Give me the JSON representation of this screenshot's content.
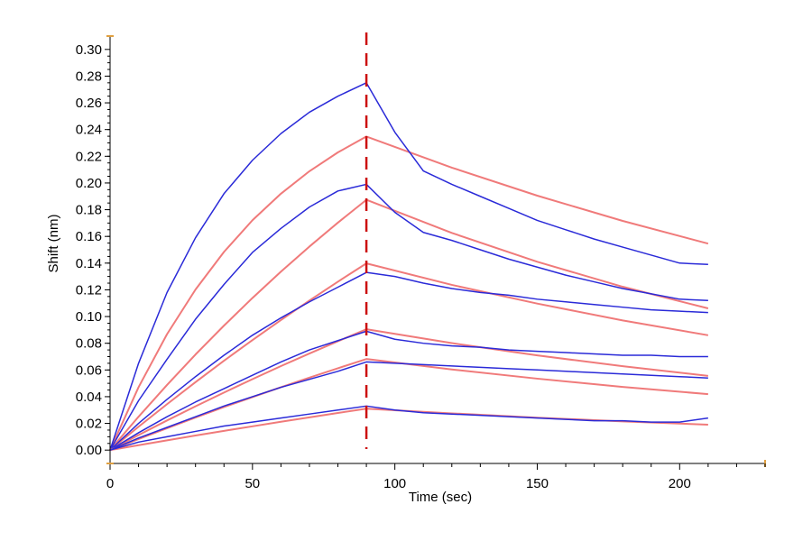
{
  "chart_data": {
    "type": "line",
    "title": "",
    "xlabel": "Time (sec)",
    "ylabel": "Shift (nm)",
    "xlim": [
      0,
      230
    ],
    "ylim": [
      -0.01,
      0.31
    ],
    "x_ticks": [
      0,
      50,
      100,
      150,
      200
    ],
    "x_tick_labels": [
      "0",
      "50",
      "100",
      "150",
      "200"
    ],
    "y_ticks": [
      0.0,
      0.02,
      0.04,
      0.06,
      0.08,
      0.1,
      0.12,
      0.14,
      0.16,
      0.18,
      0.2,
      0.22,
      0.24,
      0.26,
      0.28,
      0.3
    ],
    "y_tick_labels": [
      "0.00",
      "0.02",
      "0.04",
      "0.06",
      "0.08",
      "0.10",
      "0.12",
      "0.14",
      "0.16",
      "0.18",
      "0.20",
      "0.22",
      "0.24",
      "0.26",
      "0.28",
      "0.30"
    ],
    "grid": false,
    "marker_line": {
      "x": 90,
      "color": "#cc1111",
      "style": "dashed"
    },
    "colors": {
      "measured": "#2a2ad8",
      "fit": "#f07a7a",
      "axis_accent": "#e0a040"
    },
    "series": [
      {
        "kind": "fit",
        "x": [
          0,
          10,
          20,
          30,
          40,
          50,
          60,
          70,
          80,
          90,
          120,
          150,
          180,
          210
        ],
        "values": [
          0,
          0.0471,
          0.0868,
          0.1202,
          0.1484,
          0.1721,
          0.192,
          0.2088,
          0.2229,
          0.2348,
          0.2115,
          0.1905,
          0.1716,
          0.1546
        ]
      },
      {
        "kind": "measured",
        "x": [
          0,
          10,
          20,
          30,
          40,
          50,
          60,
          70,
          80,
          90,
          100,
          110,
          120,
          130,
          140,
          150,
          160,
          170,
          180,
          190,
          200,
          210
        ],
        "values": [
          0,
          0.065,
          0.118,
          0.159,
          0.192,
          0.217,
          0.237,
          0.253,
          0.265,
          0.275,
          0.238,
          0.209,
          0.199,
          0.19,
          0.181,
          0.172,
          0.165,
          0.158,
          0.152,
          0.146,
          0.14,
          0.139
        ]
      },
      {
        "kind": "fit",
        "x": [
          0,
          10,
          20,
          30,
          40,
          50,
          60,
          70,
          80,
          90,
          120,
          150,
          180,
          210
        ],
        "values": [
          0,
          0.025,
          0.0488,
          0.0716,
          0.0932,
          0.1139,
          0.1336,
          0.1524,
          0.1703,
          0.1874,
          0.1626,
          0.141,
          0.1223,
          0.1061
        ]
      },
      {
        "kind": "measured",
        "x": [
          0,
          10,
          20,
          30,
          40,
          50,
          60,
          70,
          80,
          90,
          100,
          110,
          120,
          130,
          140,
          150,
          160,
          170,
          180,
          190,
          200,
          210
        ],
        "values": [
          0,
          0.037,
          0.068,
          0.098,
          0.124,
          0.148,
          0.166,
          0.182,
          0.194,
          0.199,
          0.178,
          0.163,
          0.157,
          0.15,
          0.143,
          0.137,
          0.131,
          0.126,
          0.121,
          0.117,
          0.113,
          0.112
        ]
      },
      {
        "kind": "fit",
        "x": [
          0,
          10,
          20,
          30,
          40,
          50,
          60,
          70,
          80,
          90,
          120,
          150,
          180,
          210
        ],
        "values": [
          0,
          0.0175,
          0.0344,
          0.0509,
          0.0669,
          0.0824,
          0.0974,
          0.112,
          0.1261,
          0.1398,
          0.1237,
          0.1097,
          0.0971,
          0.086
        ]
      },
      {
        "kind": "measured",
        "x": [
          0,
          10,
          20,
          30,
          40,
          50,
          60,
          70,
          80,
          90,
          100,
          110,
          120,
          130,
          140,
          150,
          160,
          170,
          180,
          190,
          200,
          210
        ],
        "values": [
          0,
          0.02,
          0.038,
          0.055,
          0.071,
          0.086,
          0.099,
          0.111,
          0.122,
          0.133,
          0.13,
          0.125,
          0.121,
          0.118,
          0.116,
          0.113,
          0.111,
          0.109,
          0.107,
          0.105,
          0.104,
          0.103
        ]
      },
      {
        "kind": "fit",
        "x": [
          0,
          10,
          20,
          30,
          40,
          50,
          60,
          70,
          80,
          90,
          120,
          150,
          180,
          210
        ],
        "values": [
          0,
          0.0113,
          0.0222,
          0.0328,
          0.0431,
          0.0531,
          0.0629,
          0.0723,
          0.0815,
          0.0905,
          0.0801,
          0.0709,
          0.0628,
          0.0556
        ]
      },
      {
        "kind": "measured",
        "x": [
          0,
          10,
          20,
          30,
          40,
          50,
          60,
          70,
          80,
          90,
          100,
          110,
          120,
          130,
          140,
          150,
          160,
          170,
          180,
          190,
          200,
          210
        ],
        "values": [
          0,
          0.013,
          0.025,
          0.036,
          0.046,
          0.056,
          0.066,
          0.075,
          0.082,
          0.089,
          0.083,
          0.08,
          0.078,
          0.077,
          0.075,
          0.074,
          0.073,
          0.072,
          0.071,
          0.071,
          0.07,
          0.07
        ]
      },
      {
        "kind": "fit",
        "x": [
          0,
          10,
          20,
          30,
          40,
          50,
          60,
          70,
          80,
          90,
          120,
          150,
          180,
          210
        ],
        "values": [
          0,
          0.0083,
          0.0164,
          0.0244,
          0.0322,
          0.0397,
          0.0471,
          0.0543,
          0.0613,
          0.0682,
          0.0604,
          0.0535,
          0.0473,
          0.0419
        ]
      },
      {
        "kind": "measured",
        "x": [
          0,
          10,
          20,
          30,
          40,
          50,
          60,
          70,
          80,
          90,
          100,
          110,
          120,
          130,
          140,
          150,
          160,
          170,
          180,
          190,
          200,
          210
        ],
        "values": [
          0,
          0.009,
          0.017,
          0.025,
          0.033,
          0.04,
          0.047,
          0.053,
          0.059,
          0.066,
          0.065,
          0.064,
          0.063,
          0.062,
          0.061,
          0.06,
          0.059,
          0.058,
          0.057,
          0.056,
          0.055,
          0.054
        ]
      },
      {
        "kind": "fit",
        "x": [
          0,
          10,
          20,
          30,
          40,
          50,
          60,
          70,
          80,
          90,
          120,
          150,
          180,
          210
        ],
        "values": [
          0,
          0.0037,
          0.0073,
          0.0109,
          0.0144,
          0.0178,
          0.0212,
          0.0245,
          0.0278,
          0.031,
          0.0275,
          0.0243,
          0.0215,
          0.019
        ]
      },
      {
        "kind": "measured",
        "x": [
          0,
          10,
          20,
          30,
          40,
          50,
          60,
          70,
          80,
          90,
          100,
          110,
          120,
          130,
          140,
          150,
          160,
          170,
          180,
          190,
          200,
          210
        ],
        "values": [
          0,
          0.006,
          0.01,
          0.014,
          0.018,
          0.021,
          0.024,
          0.027,
          0.03,
          0.033,
          0.03,
          0.028,
          0.027,
          0.026,
          0.025,
          0.024,
          0.023,
          0.022,
          0.022,
          0.021,
          0.021,
          0.024
        ]
      }
    ]
  }
}
